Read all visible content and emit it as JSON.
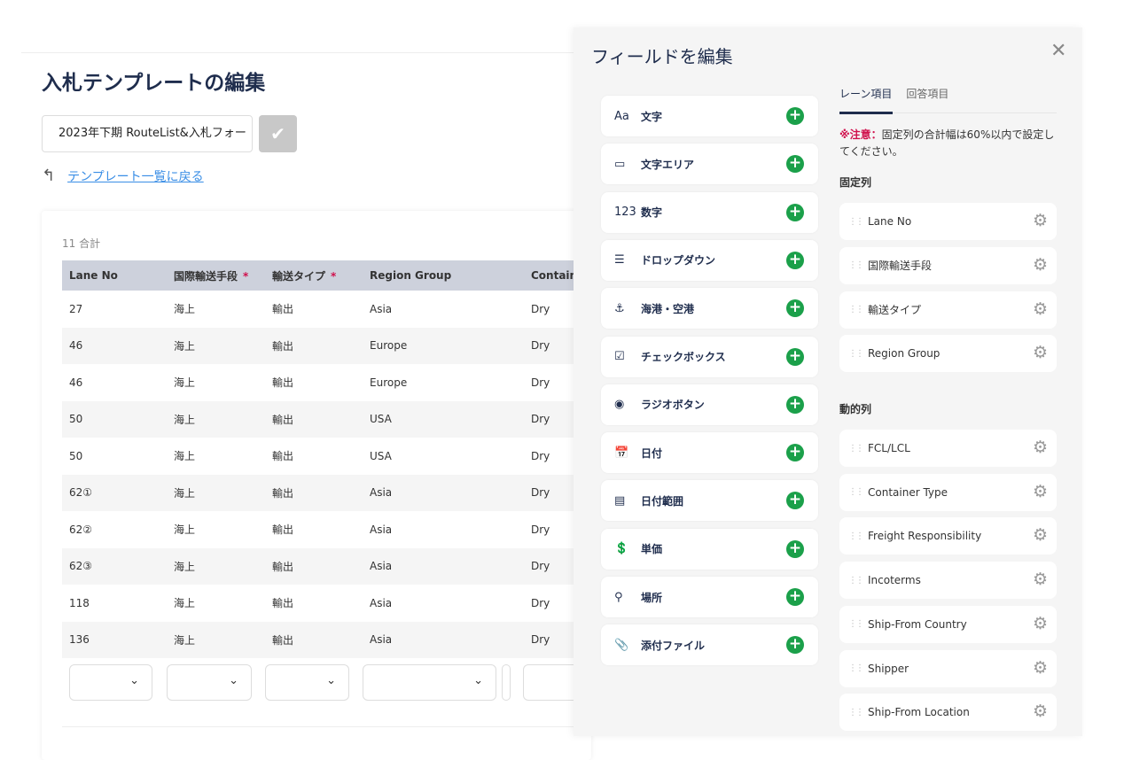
{
  "page": {
    "title": "入札テンプレートの編集",
    "template_name": "2023年下期 RouteList&入札フォー",
    "back_link": "テンプレート一覧に戻る"
  },
  "table": {
    "count": "11 合計",
    "headers": [
      "Lane No",
      "国際輸送手段",
      "輸送タイプ",
      "Region Group",
      "Containe"
    ],
    "required": [
      false,
      true,
      true,
      false,
      false
    ],
    "rows": [
      [
        "27",
        "海上",
        "輸出",
        "Asia",
        "Dry"
      ],
      [
        "46",
        "海上",
        "輸出",
        "Europe",
        "Dry"
      ],
      [
        "46",
        "海上",
        "輸出",
        "Europe",
        "Dry"
      ],
      [
        "50",
        "海上",
        "輸出",
        "USA",
        "Dry"
      ],
      [
        "50",
        "海上",
        "輸出",
        "USA",
        "Dry"
      ],
      [
        "62①",
        "海上",
        "輸出",
        "Asia",
        "Dry"
      ],
      [
        "62②",
        "海上",
        "輸出",
        "Asia",
        "Dry"
      ],
      [
        "62③",
        "海上",
        "輸出",
        "Asia",
        "Dry"
      ],
      [
        "118",
        "海上",
        "輸出",
        "Asia",
        "Dry"
      ],
      [
        "136",
        "海上",
        "輸出",
        "Asia",
        "Dry"
      ]
    ]
  },
  "panel": {
    "title": "フィールドを編集",
    "field_types": [
      {
        "icon": "text-icon",
        "glyph": "Aa",
        "label": "文字"
      },
      {
        "icon": "textarea-icon",
        "glyph": "▭",
        "label": "文字エリア"
      },
      {
        "icon": "number-icon",
        "glyph": "123",
        "label": "数字"
      },
      {
        "icon": "list-icon",
        "glyph": "☰",
        "label": "ドロップダウン"
      },
      {
        "icon": "anchor-icon",
        "glyph": "⚓",
        "label": "海港・空港"
      },
      {
        "icon": "checkbox-icon",
        "glyph": "☑",
        "label": "チェックボックス"
      },
      {
        "icon": "radio-icon",
        "glyph": "◉",
        "label": "ラジオボタン"
      },
      {
        "icon": "calendar-icon",
        "glyph": "📅",
        "label": "日付"
      },
      {
        "icon": "date-range-icon",
        "glyph": "▤",
        "label": "日付範囲"
      },
      {
        "icon": "price-icon",
        "glyph": "💲",
        "label": "単価"
      },
      {
        "icon": "location-icon",
        "glyph": "⚲",
        "label": "場所"
      },
      {
        "icon": "paperclip-icon",
        "glyph": "📎",
        "label": "添付ファイル"
      }
    ],
    "tabs": [
      "レーン項目",
      "回答項目"
    ],
    "note_label": "※注意：",
    "note_text": "固定列の合計幅は60%以内で設定してください。",
    "fixed_title": "固定列",
    "fixed": [
      "Lane No",
      "国際輸送手段",
      "輸送タイプ",
      "Region Group"
    ],
    "dynamic_title": "動的列",
    "dynamic": [
      "FCL/LCL",
      "Container Type",
      "Freight Responsibility",
      "Incoterms",
      "Ship-From Country",
      "Shipper",
      "Ship-From Location"
    ],
    "accent": "#1ba04a",
    "warning": "#d0104c"
  }
}
